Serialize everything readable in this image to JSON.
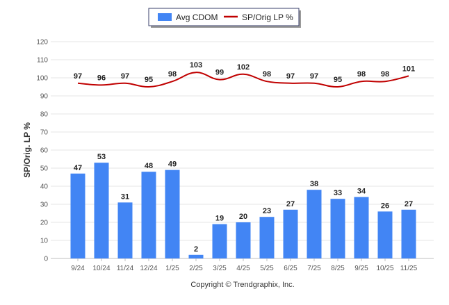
{
  "chart_data": {
    "type": "bar",
    "title": "",
    "xlabel": "",
    "ylabel": "SP/Orig. LP %",
    "ylim": [
      0,
      120
    ],
    "yticks": [
      0,
      10,
      20,
      30,
      40,
      50,
      60,
      70,
      80,
      90,
      100,
      110,
      120
    ],
    "grid": true,
    "legend_position": "top-center",
    "categories": [
      "9/24",
      "10/24",
      "11/24",
      "12/24",
      "1/25",
      "2/25",
      "3/25",
      "4/25",
      "5/25",
      "6/25",
      "7/25",
      "8/25",
      "9/25",
      "10/25",
      "11/25"
    ],
    "series": [
      {
        "name": "Avg CDOM",
        "type": "bar",
        "color": "#4285f4",
        "values": [
          47,
          53,
          31,
          48,
          49,
          2,
          19,
          20,
          23,
          27,
          38,
          33,
          34,
          26,
          27
        ]
      },
      {
        "name": "SP/Orig LP %",
        "type": "line",
        "color": "#c00000",
        "values": [
          97,
          96,
          97,
          95,
          98,
          103,
          99,
          102,
          98,
          97,
          97,
          95,
          98,
          98,
          101
        ]
      }
    ]
  },
  "footer": {
    "copyright": "Copyright © Trendgraphix, Inc."
  }
}
